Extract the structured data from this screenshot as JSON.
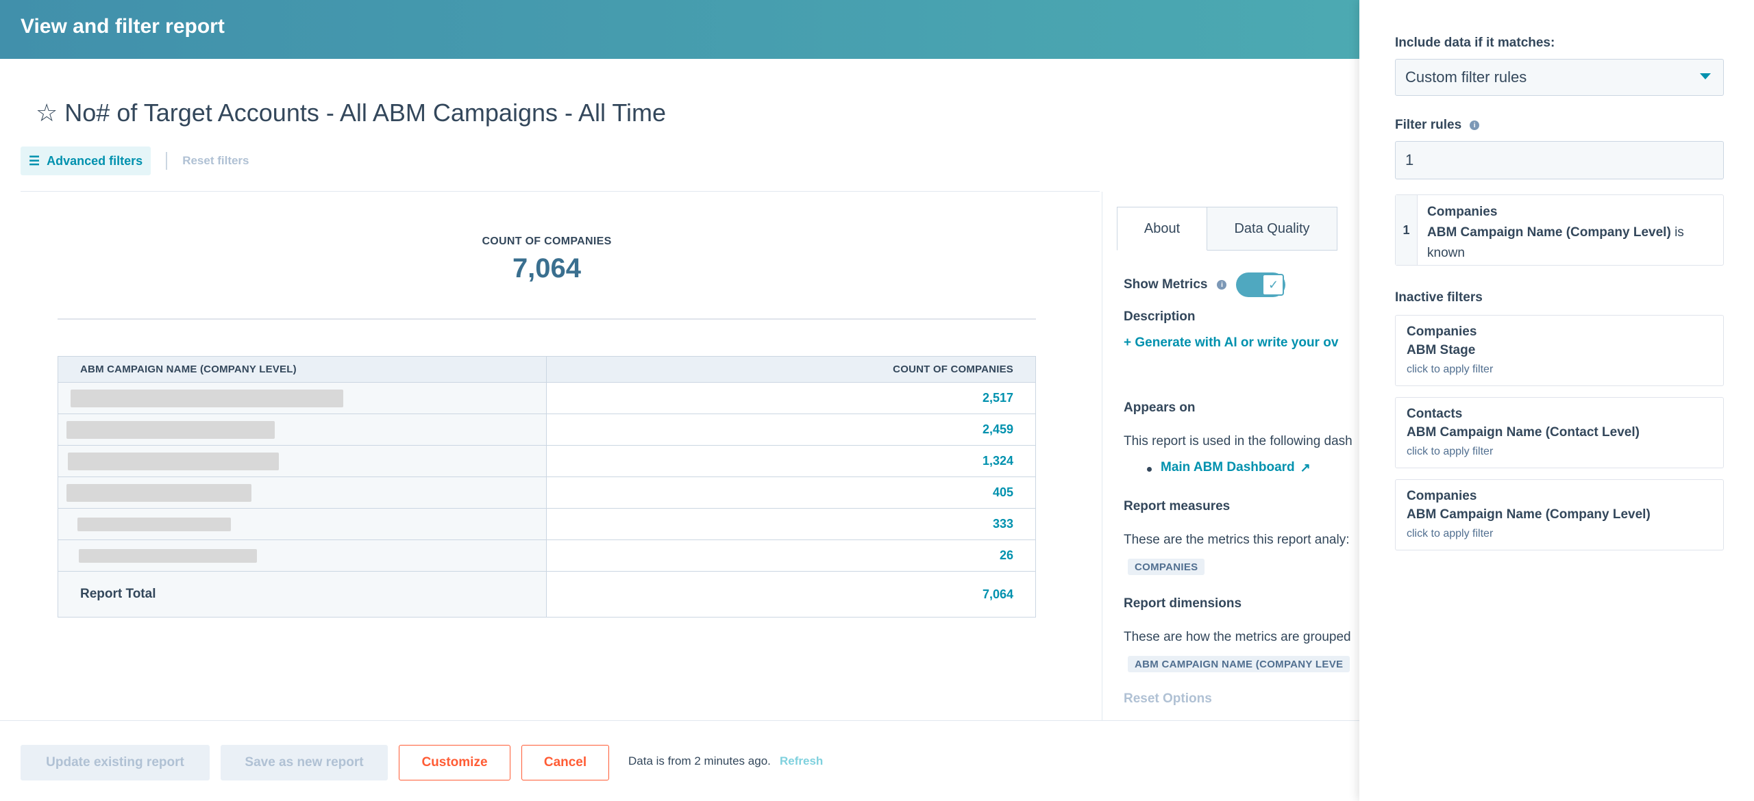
{
  "header": {
    "title": "View and filter report"
  },
  "report": {
    "title": "No# of Target Accounts - All ABM Campaigns - All Time",
    "advanced_filters_label": "Advanced filters",
    "reset_filters_label": "Reset filters"
  },
  "summary": {
    "label": "COUNT OF COMPANIES",
    "value": "7,064"
  },
  "table": {
    "columns": [
      "ABM CAMPAIGN NAME (COMPANY LEVEL)",
      "COUNT OF COMPANIES"
    ],
    "rows": [
      {
        "name": "",
        "count": "2,517"
      },
      {
        "name": "",
        "count": "2,459"
      },
      {
        "name": "",
        "count": "1,324"
      },
      {
        "name": "",
        "count": "405"
      },
      {
        "name": "",
        "count": "333"
      },
      {
        "name": "",
        "count": "26"
      }
    ],
    "total_label": "Report Total",
    "total_value": "7,064"
  },
  "side": {
    "tabs": [
      "About",
      "Data Quality"
    ],
    "show_metrics_label": "Show Metrics",
    "description_label": "Description",
    "generate_link": "Generate with AI or write your ov",
    "appears_on_label": "Appears on",
    "appears_on_text": "This report is used in the following dash",
    "dashboard_link": "Main ABM Dashboard",
    "measures_label": "Report measures",
    "measures_text": "These are the metrics this report analy:",
    "measures_tag": "COMPANIES",
    "dimensions_label": "Report dimensions",
    "dimensions_text": "These are how the metrics are grouped",
    "dimensions_tag": "ABM CAMPAIGN NAME (COMPANY LEVE",
    "reset_options": "Reset Options"
  },
  "footer": {
    "update_label": "Update existing report",
    "save_new_label": "Save as new report",
    "customize_label": "Customize",
    "cancel_label": "Cancel",
    "data_note": "Data is from 2 minutes ago.",
    "refresh_label": "Refresh"
  },
  "panel": {
    "include_label": "Include data if it matches:",
    "include_value": "Custom filter rules",
    "filter_rules_label": "Filter rules",
    "filter_rules_value": "1",
    "active_rule": {
      "number": "1",
      "object": "Companies",
      "property": "ABM Campaign Name (Company Level)",
      "operator": "is",
      "operator2": "known"
    },
    "inactive_label": "Inactive filters",
    "inactive": [
      {
        "object": "Companies",
        "property": "ABM Stage",
        "hint": "click to apply filter"
      },
      {
        "object": "Contacts",
        "property": "ABM Campaign Name (Contact Level)",
        "hint": "click to apply filter"
      },
      {
        "object": "Companies",
        "property": "ABM Campaign Name (Company Level)",
        "hint": "click to apply filter"
      }
    ]
  },
  "colors": {
    "accent": "#0091ae",
    "brand_orange": "#ff5c35",
    "text": "#33475b"
  }
}
